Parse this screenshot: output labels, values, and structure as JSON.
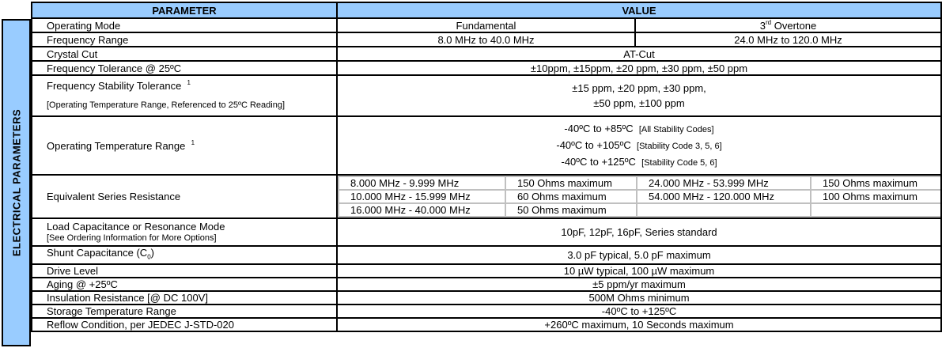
{
  "side_label": "ELECTRICAL PARAMETERS",
  "header": {
    "parameter": "PARAMETER",
    "value": "VALUE"
  },
  "rows": {
    "operating_mode": {
      "label": "Operating Mode",
      "fundamental": "Fundamental",
      "overtone_num": "3",
      "overtone_sup": "rd",
      "overtone_text": " Overtone"
    },
    "frequency_range": {
      "label": "Frequency Range",
      "fundamental": "8.0 MHz to 40.0 MHz",
      "overtone": "24.0 MHz to 120.0 MHz"
    },
    "crystal_cut": {
      "label": "Crystal Cut",
      "value": "AT-Cut"
    },
    "frequency_tolerance": {
      "label": "Frequency Tolerance @ 25ºC",
      "value": "±10ppm, ±15ppm, ±20 ppm, ±30 ppm, ±50 ppm"
    },
    "stability": {
      "label": "Frequency Stability Tolerance",
      "note": "1",
      "sublabel": "[Operating Temperature Range, Referenced to 25ºC Reading]",
      "line1": "±15 ppm, ±20 ppm, ±30 ppm,",
      "line2": "±50 ppm, ±100 ppm"
    },
    "op_temp": {
      "label": "Operating Temperature Range",
      "note": "1",
      "lines": [
        {
          "range": "-40ºC to +85ºC",
          "code": "[All Stability Codes]"
        },
        {
          "range": "-40ºC to +105ºC",
          "code": "[Stability Code 3, 5, 6]"
        },
        {
          "range": "-40ºC to +125ºC",
          "code": "[Stability Code 5, 6]"
        }
      ]
    },
    "esr": {
      "label": "Equivalent Series Resistance",
      "rows": [
        [
          "8.000 MHz - 9.999 MHz",
          "150 Ohms maximum",
          "24.000 MHz - 53.999 MHz",
          "150 Ohms maximum"
        ],
        [
          "10.000 MHz - 15.999 MHz",
          "60 Ohms maximum",
          "54.000 MHz - 120.000 MHz",
          "100 Ohms maximum"
        ],
        [
          "16.000 MHz - 40.000 MHz",
          "50 Ohms maximum",
          "",
          ""
        ]
      ]
    },
    "load_cap": {
      "label": "Load Capacitance or Resonance Mode",
      "sublabel": "[See Ordering Information for More Options]",
      "value": "10pF, 12pF, 16pF, Series standard"
    },
    "shunt": {
      "label": "Shunt Capacitance  (C",
      "label_sub": "0",
      "label_end": ")",
      "value": "3.0 pF typical, 5.0 pF maximum"
    },
    "drive": {
      "label": "Drive Level",
      "value": "10 µW typical, 100 µW maximum"
    },
    "aging": {
      "label": "Aging @ +25ºC",
      "value": "±5 ppm/yr maximum"
    },
    "insulation": {
      "label": "Insulation Resistance  [@ DC 100V]",
      "value": "500M Ohms minimum"
    },
    "storage": {
      "label": "Storage Temperature Range",
      "value": "-40ºC to +125ºC"
    },
    "reflow": {
      "label": "Reflow Condition, per JEDEC J-STD-020",
      "value": "+260ºC maximum, 10 Seconds maximum"
    }
  }
}
